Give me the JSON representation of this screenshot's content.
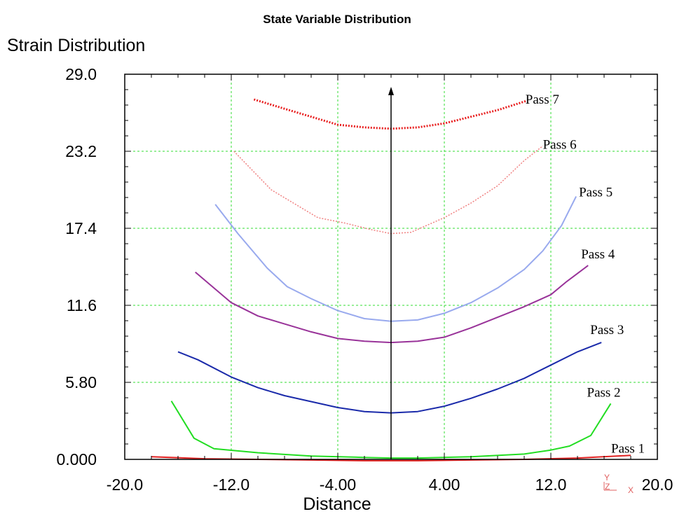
{
  "chart_data": {
    "type": "line",
    "title": "State Variable Distribution",
    "ylabel": "Strain Distribution",
    "xlabel": "Distance",
    "xlim": [
      -20,
      20
    ],
    "ylim": [
      0,
      29
    ],
    "xticks": [
      "-20.0",
      "-12.0",
      "-4.00",
      "4.00",
      "12.0",
      "20.0"
    ],
    "yticks": [
      "0.000",
      "5.80",
      "11.6",
      "17.4",
      "23.2",
      "29.0"
    ],
    "grid": true,
    "axis_triad": [
      "Y",
      "Z",
      "X"
    ],
    "series": [
      {
        "name": "Pass 1",
        "color": "#e02020",
        "points": [
          [
            -18,
            0.2
          ],
          [
            -14,
            0.05
          ],
          [
            -10,
            0
          ],
          [
            -6,
            -0.05
          ],
          [
            -2,
            -0.1
          ],
          [
            0,
            -0.1
          ],
          [
            2,
            -0.1
          ],
          [
            6,
            -0.05
          ],
          [
            10,
            0
          ],
          [
            14,
            0.1
          ],
          [
            18,
            0.3
          ]
        ]
      },
      {
        "name": "Pass 2",
        "color": "#22dd22",
        "points": [
          [
            -16.5,
            4.4
          ],
          [
            -14.8,
            1.6
          ],
          [
            -13.3,
            0.8
          ],
          [
            -10,
            0.5
          ],
          [
            -6,
            0.25
          ],
          [
            -2,
            0.15
          ],
          [
            0,
            0.1
          ],
          [
            2,
            0.1
          ],
          [
            6,
            0.2
          ],
          [
            10,
            0.4
          ],
          [
            12,
            0.7
          ],
          [
            13.4,
            1.0
          ],
          [
            15,
            1.8
          ],
          [
            16.5,
            4.2
          ]
        ]
      },
      {
        "name": "Pass 3",
        "color": "#1a2aaa",
        "points": [
          [
            -16,
            8.1
          ],
          [
            -14.5,
            7.5
          ],
          [
            -12,
            6.2
          ],
          [
            -10,
            5.4
          ],
          [
            -8,
            4.8
          ],
          [
            -4,
            3.9
          ],
          [
            -2,
            3.6
          ],
          [
            0,
            3.5
          ],
          [
            2,
            3.6
          ],
          [
            4,
            4.0
          ],
          [
            6,
            4.6
          ],
          [
            8,
            5.3
          ],
          [
            10,
            6.1
          ],
          [
            12,
            7.1
          ],
          [
            14,
            8.1
          ],
          [
            15.8,
            8.8
          ]
        ]
      },
      {
        "name": "Pass 4",
        "color": "#993399",
        "points": [
          [
            -14.7,
            14.1
          ],
          [
            -12,
            11.8
          ],
          [
            -10,
            10.8
          ],
          [
            -8,
            10.2
          ],
          [
            -6,
            9.6
          ],
          [
            -4,
            9.1
          ],
          [
            -2,
            8.9
          ],
          [
            0,
            8.8
          ],
          [
            2,
            8.9
          ],
          [
            4,
            9.2
          ],
          [
            6,
            9.9
          ],
          [
            8,
            10.7
          ],
          [
            10,
            11.5
          ],
          [
            12,
            12.4
          ],
          [
            13.2,
            13.4
          ],
          [
            14.8,
            14.6
          ]
        ]
      },
      {
        "name": "Pass 5",
        "color": "#99aaee",
        "points": [
          [
            -13.2,
            19.2
          ],
          [
            -11.5,
            17.0
          ],
          [
            -9.3,
            14.4
          ],
          [
            -7.8,
            13.0
          ],
          [
            -6,
            12.1
          ],
          [
            -4,
            11.2
          ],
          [
            -2,
            10.6
          ],
          [
            0,
            10.4
          ],
          [
            2,
            10.5
          ],
          [
            4,
            11.0
          ],
          [
            6,
            11.8
          ],
          [
            8,
            12.9
          ],
          [
            10,
            14.3
          ],
          [
            11.4,
            15.7
          ],
          [
            12.8,
            17.6
          ],
          [
            13.9,
            19.8
          ]
        ]
      },
      {
        "name": "Pass 6",
        "color": "#f08080",
        "points": [
          [
            -11.8,
            23.2
          ],
          [
            -9,
            20.3
          ],
          [
            -7.5,
            19.4
          ],
          [
            -5.5,
            18.2
          ],
          [
            -3.5,
            17.8
          ],
          [
            -1.5,
            17.3
          ],
          [
            0,
            17.0
          ],
          [
            1.5,
            17.1
          ],
          [
            4,
            18.2
          ],
          [
            6,
            19.3
          ],
          [
            8,
            20.6
          ],
          [
            10,
            22.5
          ],
          [
            11.4,
            23.6
          ]
        ]
      },
      {
        "name": "Pass 7",
        "color": "#e82020",
        "points": [
          [
            -10.3,
            27.1
          ],
          [
            -8,
            26.4
          ],
          [
            -6,
            25.8
          ],
          [
            -4,
            25.2
          ],
          [
            -2,
            25.0
          ],
          [
            0,
            24.9
          ],
          [
            2,
            25.0
          ],
          [
            4,
            25.3
          ],
          [
            6,
            25.8
          ],
          [
            8,
            26.3
          ],
          [
            10.2,
            27.0
          ]
        ]
      }
    ]
  }
}
